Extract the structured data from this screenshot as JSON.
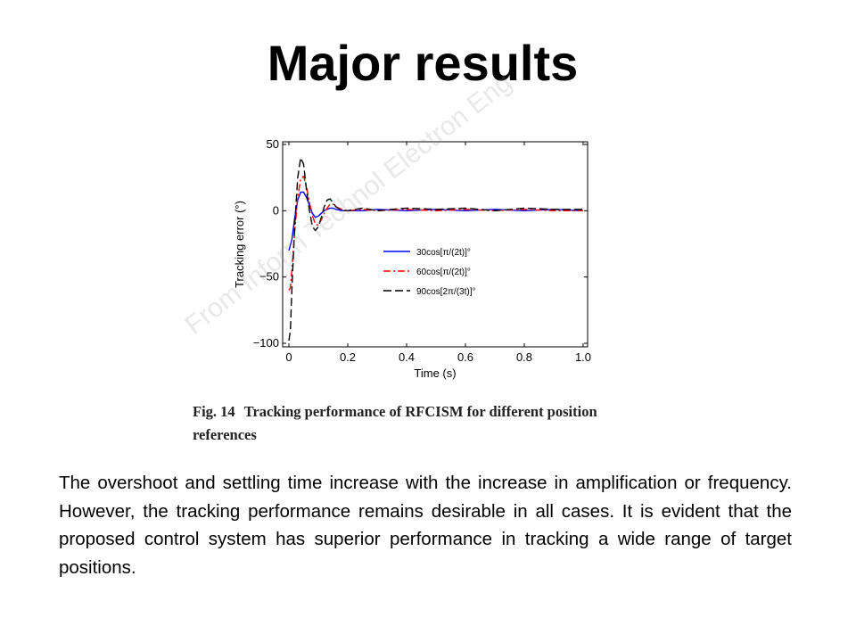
{
  "slide": {
    "title": "Major results",
    "watermark": "From Inform Technol Electron Eng",
    "figure_caption": {
      "label": "Fig. 14",
      "text": "Tracking performance of RFCISM for different position references"
    },
    "body": "The overshoot and settling time increase with the increase in amplification or frequency. However, the tracking performance remains desirable in all cases. It is evident that the proposed control system has superior performance in tracking a wide range of target positions."
  },
  "chart_data": {
    "type": "line",
    "title": "",
    "xlabel": "Time (s)",
    "ylabel": "Tracking error (°)",
    "xlim": [
      0,
      1.0
    ],
    "ylim": [
      -100,
      50
    ],
    "xticks": [
      "0",
      "0.2",
      "0.4",
      "0.6",
      "0.8",
      "1.0"
    ],
    "yticks": [
      "50",
      "0",
      "−50",
      "−100"
    ],
    "xtick_values": [
      0,
      0.2,
      0.4,
      0.6,
      0.8,
      1.0
    ],
    "ytick_values": [
      50,
      0,
      -50,
      -100
    ],
    "grid": false,
    "legend_position": "center-right",
    "series": [
      {
        "name": "30cos[π/(2t)]°",
        "color": "#0000ff",
        "style": "solid",
        "x": [
          0,
          0.01,
          0.02,
          0.03,
          0.04,
          0.05,
          0.06,
          0.07,
          0.08,
          0.09,
          0.1,
          0.11,
          0.12,
          0.13,
          0.14,
          0.15,
          0.16,
          0.18,
          0.2,
          0.25,
          0.3,
          0.4,
          0.5,
          0.6,
          0.7,
          0.8,
          0.9,
          1.0
        ],
        "y": [
          -30,
          -22,
          -5,
          8,
          14,
          14,
          10,
          4,
          -2,
          -5,
          -4,
          -2,
          0,
          1,
          2,
          2,
          1,
          0,
          0,
          0,
          1,
          0,
          1,
          0,
          1,
          0,
          1,
          0
        ]
      },
      {
        "name": "60cos[π/(2t)]°",
        "color": "#ff0000",
        "style": "dashdot",
        "x": [
          0,
          0.005,
          0.01,
          0.02,
          0.03,
          0.04,
          0.05,
          0.06,
          0.07,
          0.08,
          0.09,
          0.1,
          0.11,
          0.12,
          0.13,
          0.14,
          0.15,
          0.16,
          0.18,
          0.2,
          0.25,
          0.3,
          0.4,
          0.5,
          0.6,
          0.7,
          0.8,
          0.9,
          1.0
        ],
        "y": [
          -60,
          -58,
          -45,
          -15,
          10,
          24,
          26,
          18,
          6,
          -4,
          -10,
          -11,
          -7,
          -2,
          2,
          5,
          5,
          3,
          1,
          0,
          1,
          0,
          1,
          0,
          1,
          0,
          1,
          0,
          0
        ]
      },
      {
        "name": "90cos[2π/(3t)]°",
        "color": "#000000",
        "style": "dashed",
        "x": [
          0,
          0.005,
          0.01,
          0.02,
          0.03,
          0.04,
          0.05,
          0.06,
          0.07,
          0.08,
          0.09,
          0.1,
          0.11,
          0.12,
          0.13,
          0.14,
          0.15,
          0.16,
          0.18,
          0.2,
          0.25,
          0.3,
          0.4,
          0.5,
          0.6,
          0.7,
          0.8,
          0.9,
          1.0
        ],
        "y": [
          -98,
          -90,
          -60,
          -10,
          25,
          40,
          35,
          15,
          0,
          -12,
          -15,
          -12,
          -5,
          3,
          8,
          9,
          6,
          3,
          0,
          0,
          2,
          0,
          2,
          1,
          2,
          0,
          2,
          1,
          1
        ]
      }
    ]
  }
}
